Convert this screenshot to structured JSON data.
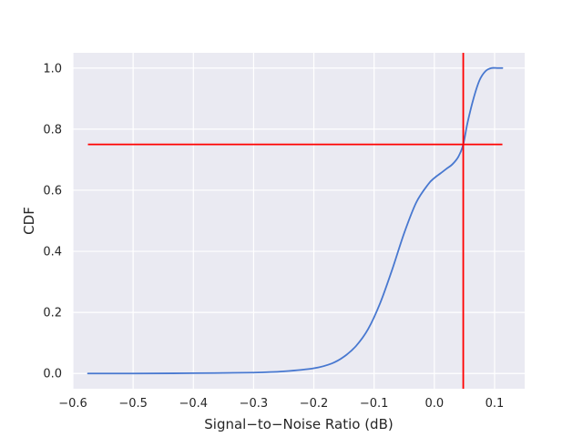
{
  "chart_data": {
    "type": "line",
    "title": "",
    "xlabel": "Signal−to−Noise Ratio (dB)",
    "ylabel": "CDF",
    "xlim": [
      -0.6,
      0.15
    ],
    "ylim": [
      -0.05,
      1.05
    ],
    "x_ticks": [
      -0.6,
      -0.5,
      -0.4,
      -0.3,
      -0.2,
      -0.1,
      0.0,
      0.1
    ],
    "x_tick_labels": [
      "−0.6",
      "−0.5",
      "−0.4",
      "−0.3",
      "−0.2",
      "−0.1",
      "0.0",
      "0.1"
    ],
    "y_ticks": [
      0.0,
      0.2,
      0.4,
      0.6,
      0.8,
      1.0
    ],
    "y_tick_labels": [
      "0.0",
      "0.2",
      "0.4",
      "0.6",
      "0.8",
      "1.0"
    ],
    "grid": true,
    "background": "#eaeaf2",
    "series": [
      {
        "color": "#4878d0",
        "x": [
          -0.575,
          -0.5,
          -0.4,
          -0.3,
          -0.25,
          -0.2,
          -0.17,
          -0.15,
          -0.13,
          -0.11,
          -0.09,
          -0.07,
          -0.05,
          -0.03,
          -0.01,
          0.0,
          0.01,
          0.02,
          0.03,
          0.04,
          0.048,
          0.055,
          0.065,
          0.075,
          0.085,
          0.095,
          0.105,
          0.113
        ],
        "y": [
          0.0,
          0.0,
          0.001,
          0.003,
          0.007,
          0.017,
          0.033,
          0.055,
          0.09,
          0.145,
          0.23,
          0.34,
          0.46,
          0.56,
          0.62,
          0.64,
          0.655,
          0.67,
          0.685,
          0.71,
          0.75,
          0.82,
          0.9,
          0.96,
          0.99,
          1.0,
          1.0,
          1.0
        ]
      }
    ],
    "reference_lines": [
      {
        "orientation": "horizontal",
        "y": 0.75,
        "x_from": -0.575,
        "x_to": 0.113,
        "color": "#ff0000"
      },
      {
        "orientation": "vertical",
        "x": 0.048,
        "color": "#ff0000"
      }
    ]
  }
}
